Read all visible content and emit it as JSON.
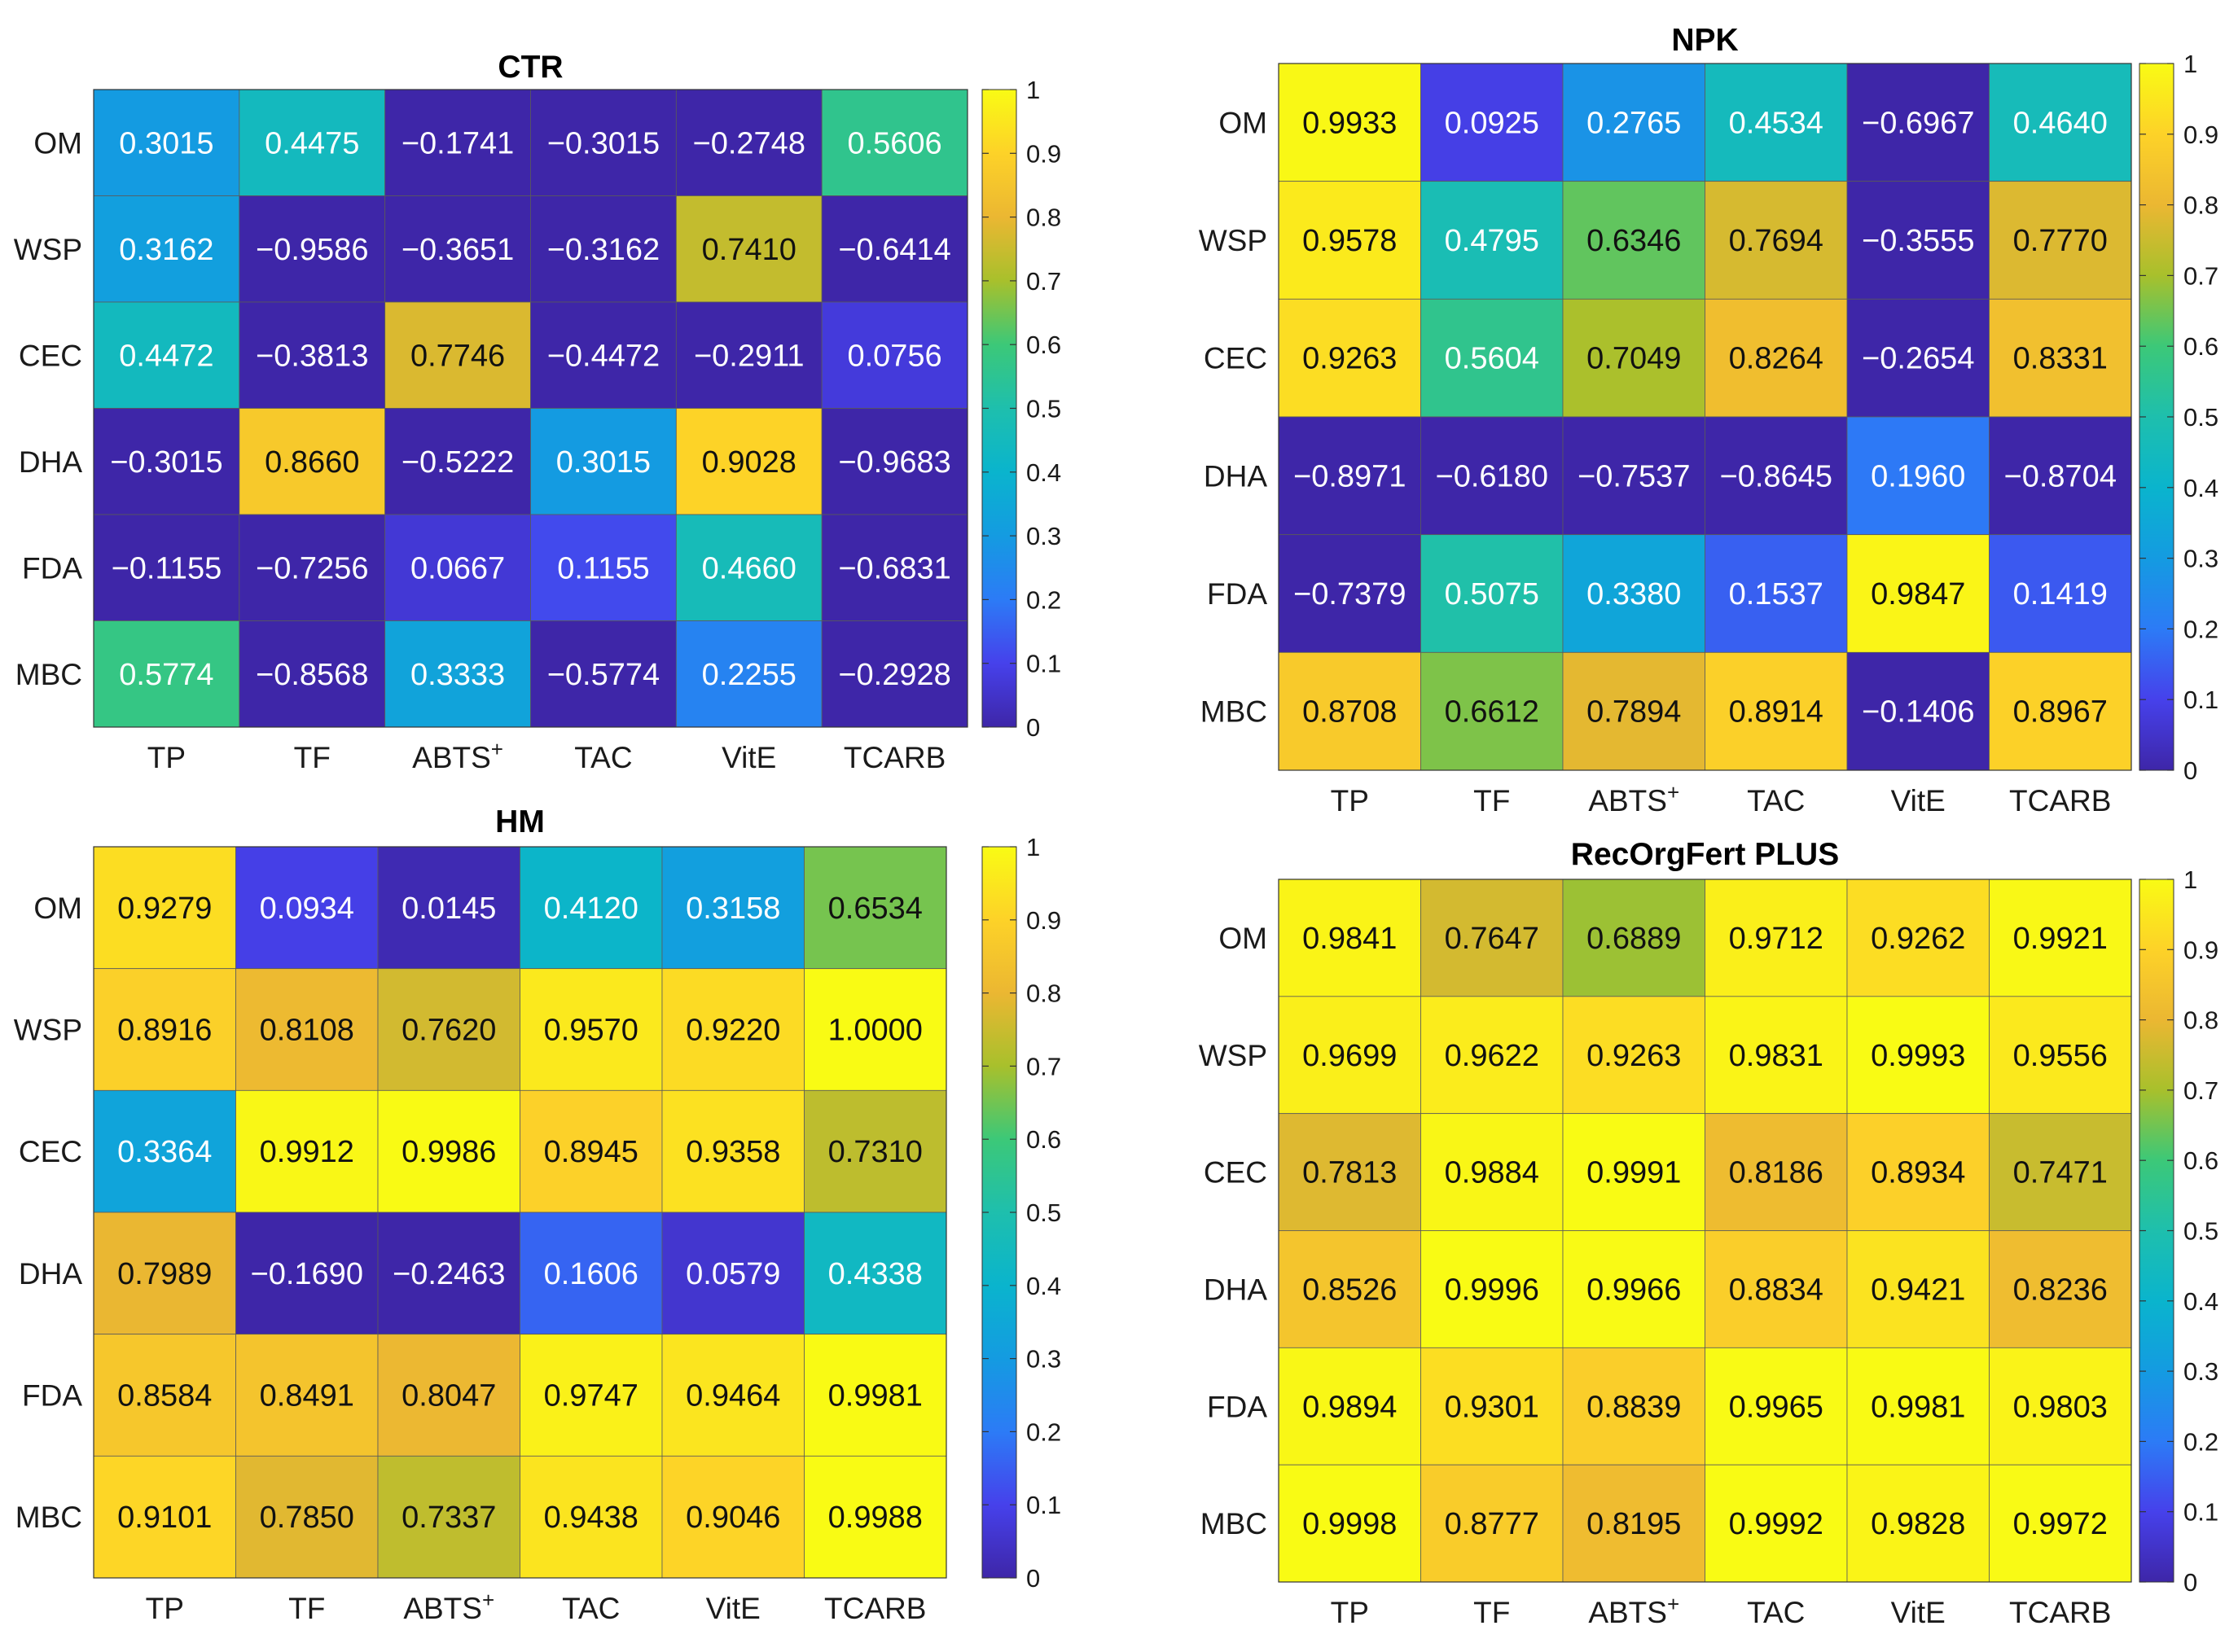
{
  "chart_data": [
    {
      "type": "heatmap",
      "title": "CTR",
      "rows": [
        "OM",
        "WSP",
        "CEC",
        "DHA",
        "FDA",
        "MBC"
      ],
      "columns": [
        "TP",
        "TF",
        "ABTS+",
        "TAC",
        "VitE",
        "TCARB"
      ],
      "values": [
        [
          0.3015,
          0.4475,
          -0.1741,
          -0.3015,
          -0.2748,
          0.5606
        ],
        [
          0.3162,
          -0.9586,
          -0.3651,
          -0.3162,
          0.741,
          -0.6414
        ],
        [
          0.4472,
          -0.3813,
          0.7746,
          -0.4472,
          -0.2911,
          0.0756
        ],
        [
          -0.3015,
          0.866,
          -0.5222,
          0.3015,
          0.9028,
          -0.9683
        ],
        [
          -0.1155,
          -0.7256,
          0.0667,
          0.1155,
          0.466,
          -0.6831
        ],
        [
          0.5774,
          -0.8568,
          0.3333,
          -0.5774,
          0.2255,
          -0.2928
        ]
      ],
      "colorbar": {
        "range": [
          0,
          1
        ],
        "ticks": [
          "0",
          "0.1",
          "0.2",
          "0.3",
          "0.4",
          "0.5",
          "0.6",
          "0.7",
          "0.8",
          "0.9",
          "1"
        ]
      }
    },
    {
      "type": "heatmap",
      "title": "NPK",
      "rows": [
        "OM",
        "WSP",
        "CEC",
        "DHA",
        "FDA",
        "MBC"
      ],
      "columns": [
        "TP",
        "TF",
        "ABTS+",
        "TAC",
        "VitE",
        "TCARB"
      ],
      "values": [
        [
          0.9933,
          0.0925,
          0.2765,
          0.4534,
          -0.6967,
          0.464
        ],
        [
          0.9578,
          0.4795,
          0.6346,
          0.7694,
          -0.3555,
          0.777
        ],
        [
          0.9263,
          0.5604,
          0.7049,
          0.8264,
          -0.2654,
          0.8331
        ],
        [
          -0.8971,
          -0.618,
          -0.7537,
          -0.8645,
          0.196,
          -0.8704
        ],
        [
          -0.7379,
          0.5075,
          0.338,
          0.1537,
          0.9847,
          0.1419
        ],
        [
          0.8708,
          0.6612,
          0.7894,
          0.8914,
          -0.1406,
          0.8967
        ]
      ],
      "colorbar": {
        "range": [
          0,
          1
        ],
        "ticks": [
          "0",
          "0.1",
          "0.2",
          "0.3",
          "0.4",
          "0.5",
          "0.6",
          "0.7",
          "0.8",
          "0.9",
          "1"
        ]
      }
    },
    {
      "type": "heatmap",
      "title": "HM",
      "rows": [
        "OM",
        "WSP",
        "CEC",
        "DHA",
        "FDA",
        "MBC"
      ],
      "columns": [
        "TP",
        "TF",
        "ABTS+",
        "TAC",
        "VitE",
        "TCARB"
      ],
      "values": [
        [
          0.9279,
          0.0934,
          0.0145,
          0.412,
          0.3158,
          0.6534
        ],
        [
          0.8916,
          0.8108,
          0.762,
          0.957,
          0.922,
          1.0
        ],
        [
          0.3364,
          0.9912,
          0.9986,
          0.8945,
          0.9358,
          0.731
        ],
        [
          0.7989,
          -0.169,
          -0.2463,
          0.1606,
          0.0579,
          0.4338
        ],
        [
          0.8584,
          0.8491,
          0.8047,
          0.9747,
          0.9464,
          0.9981
        ],
        [
          0.9101,
          0.785,
          0.7337,
          0.9438,
          0.9046,
          0.9988
        ]
      ],
      "colorbar": {
        "range": [
          0,
          1
        ],
        "ticks": [
          "0",
          "0.1",
          "0.2",
          "0.3",
          "0.4",
          "0.5",
          "0.6",
          "0.7",
          "0.8",
          "0.9",
          "1"
        ]
      }
    },
    {
      "type": "heatmap",
      "title": "RecOrgFert PLUS",
      "rows": [
        "OM",
        "WSP",
        "CEC",
        "DHA",
        "FDA",
        "MBC"
      ],
      "columns": [
        "TP",
        "TF",
        "ABTS+",
        "TAC",
        "VitE",
        "TCARB"
      ],
      "values": [
        [
          0.9841,
          0.7647,
          0.6889,
          0.9712,
          0.9262,
          0.9921
        ],
        [
          0.9699,
          0.9622,
          0.9263,
          0.9831,
          0.9993,
          0.9556
        ],
        [
          0.7813,
          0.9884,
          0.9991,
          0.8186,
          0.8934,
          0.7471
        ],
        [
          0.8526,
          0.9996,
          0.9966,
          0.8834,
          0.9421,
          0.8236
        ],
        [
          0.9894,
          0.9301,
          0.8839,
          0.9965,
          0.9981,
          0.9803
        ],
        [
          0.9998,
          0.8777,
          0.8195,
          0.9992,
          0.9828,
          0.9972
        ]
      ],
      "colorbar": {
        "range": [
          0,
          1
        ],
        "ticks": [
          "0",
          "0.1",
          "0.2",
          "0.3",
          "0.4",
          "0.5",
          "0.6",
          "0.7",
          "0.8",
          "0.9",
          "1"
        ]
      }
    }
  ]
}
